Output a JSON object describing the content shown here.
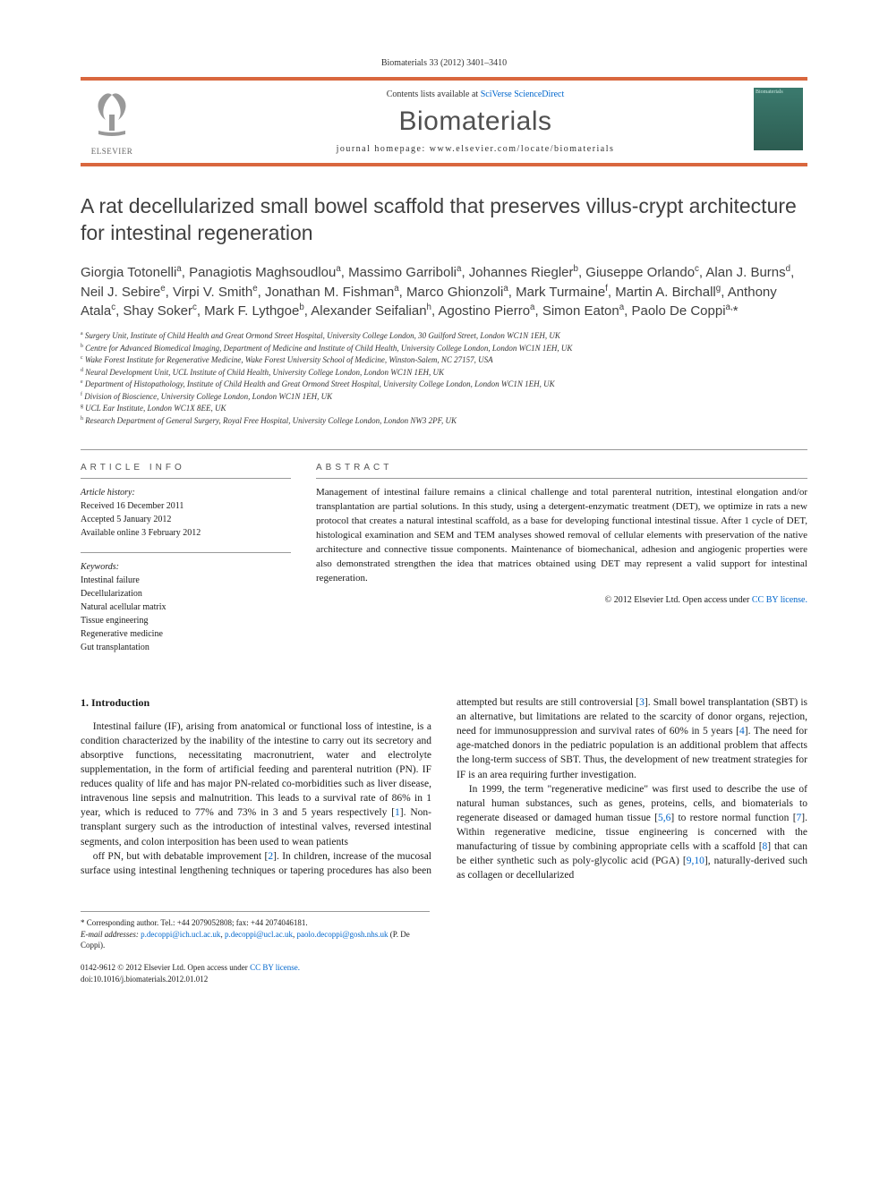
{
  "page_header": "Biomaterials 33 (2012) 3401–3410",
  "header": {
    "publisher": "ELSEVIER",
    "contents_prefix": "Contents lists available at ",
    "contents_link": "SciVerse ScienceDirect",
    "journal": "Biomaterials",
    "homepage_prefix": "journal homepage: ",
    "homepage_url": "www.elsevier.com/locate/biomaterials",
    "accent_color": "#d9673e"
  },
  "title": "A rat decellularized small bowel scaffold that preserves villus-crypt architecture for intestinal regeneration",
  "authors_html": "Giorgia Totonelli<span class='sup'>a</span>, Panagiotis Maghsoudlou<span class='sup'>a</span>, Massimo Garriboli<span class='sup'>a</span>, Johannes Riegler<span class='sup'>b</span>, Giuseppe Orlando<span class='sup'>c</span>, Alan J. Burns<span class='sup'>d</span>, Neil J. Sebire<span class='sup'>e</span>, Virpi V. Smith<span class='sup'>e</span>, Jonathan M. Fishman<span class='sup'>a</span>, Marco Ghionzoli<span class='sup'>a</span>, Mark Turmaine<span class='sup'>f</span>, Martin A. Birchall<span class='sup'>g</span>, Anthony Atala<span class='sup'>c</span>, Shay Soker<span class='sup'>c</span>, Mark F. Lythgoe<span class='sup'>b</span>, Alexander Seifalian<span class='sup'>h</span>, Agostino Pierro<span class='sup'>a</span>, Simon Eaton<span class='sup'>a</span>, Paolo De Coppi<span class='sup'>a,</span>*",
  "affiliations": [
    {
      "key": "a",
      "text": "Surgery Unit, Institute of Child Health and Great Ormond Street Hospital, University College London, 30 Guilford Street, London WC1N 1EH, UK"
    },
    {
      "key": "b",
      "text": "Centre for Advanced Biomedical Imaging, Department of Medicine and Institute of Child Health, University College London, London WC1N 1EH, UK"
    },
    {
      "key": "c",
      "text": "Wake Forest Institute for Regenerative Medicine, Wake Forest University School of Medicine, Winston-Salem, NC 27157, USA"
    },
    {
      "key": "d",
      "text": "Neural Development Unit, UCL Institute of Child Health, University College London, London WC1N 1EH, UK"
    },
    {
      "key": "e",
      "text": "Department of Histopathology, Institute of Child Health and Great Ormond Street Hospital, University College London, London WC1N 1EH, UK"
    },
    {
      "key": "f",
      "text": "Division of Bioscience, University College London, London WC1N 1EH, UK"
    },
    {
      "key": "g",
      "text": "UCL Ear Institute, London WC1X 8EE, UK"
    },
    {
      "key": "h",
      "text": "Research Department of General Surgery, Royal Free Hospital, University College London, London NW3 2PF, UK"
    }
  ],
  "info": {
    "label": "ARTICLE INFO",
    "history_label": "Article history:",
    "history": [
      "Received 16 December 2011",
      "Accepted 5 January 2012",
      "Available online 3 February 2012"
    ],
    "keywords_label": "Keywords:",
    "keywords": [
      "Intestinal failure",
      "Decellularization",
      "Natural acellular matrix",
      "Tissue engineering",
      "Regenerative medicine",
      "Gut transplantation"
    ]
  },
  "abstract": {
    "label": "ABSTRACT",
    "text": "Management of intestinal failure remains a clinical challenge and total parenteral nutrition, intestinal elongation and/or transplantation are partial solutions. In this study, using a detergent-enzymatic treatment (DET), we optimize in rats a new protocol that creates a natural intestinal scaffold, as a base for developing functional intestinal tissue. After 1 cycle of DET, histological examination and SEM and TEM analyses showed removal of cellular elements with preservation of the native architecture and connective tissue components. Maintenance of biomechanical, adhesion and angiogenic properties were also demonstrated strengthen the idea that matrices obtained using DET may represent a valid support for intestinal regeneration.",
    "copyright_prefix": "© 2012 Elsevier Ltd. ",
    "copyright_oa": "Open access under ",
    "copyright_link": "CC BY license."
  },
  "body": {
    "heading": "1. Introduction",
    "p1": "Intestinal failure (IF), arising from anatomical or functional loss of intestine, is a condition characterized by the inability of the intestine to carry out its secretory and absorptive functions, necessitating macronutrient, water and electrolyte supplementation, in the form of artificial feeding and parenteral nutrition (PN). IF reduces quality of life and has major PN-related co-morbidities such as liver disease, intravenous line sepsis and malnutrition. This leads to a survival rate of 86% in 1 year, which is reduced to 77% and 73% in 3 and 5 years respectively [1]. Non-transplant surgery such as the introduction of intestinal valves, reversed intestinal segments, and colon interposition has been used to wean patients",
    "p2": "off PN, but with debatable improvement [2]. In children, increase of the mucosal surface using intestinal lengthening techniques or tapering procedures has also been attempted but results are still controversial [3]. Small bowel transplantation (SBT) is an alternative, but limitations are related to the scarcity of donor organs, rejection, need for immunosuppression and survival rates of 60% in 5 years [4]. The need for age-matched donors in the pediatric population is an additional problem that affects the long-term success of SBT. Thus, the development of new treatment strategies for IF is an area requiring further investigation.",
    "p3": "In 1999, the term \"regenerative medicine\" was first used to describe the use of natural human substances, such as genes, proteins, cells, and biomaterials to regenerate diseased or damaged human tissue [5,6] to restore normal function [7]. Within regenerative medicine, tissue engineering is concerned with the manufacturing of tissue by combining appropriate cells with a scaffold [8] that can be either synthetic such as poly-glycolic acid (PGA) [9,10], naturally-derived such as collagen or decellularized"
  },
  "footnotes": {
    "corr": "* Corresponding author. Tel.: +44 2079052808; fax: +44 2074046181.",
    "email_label": "E-mail addresses: ",
    "emails": [
      "p.decoppi@ich.ucl.ac.uk",
      "p.decoppi@ucl.ac.uk",
      "paolo.decoppi@gosh.nhs.uk"
    ],
    "email_suffix": " (P. De Coppi)."
  },
  "doi": {
    "line1_prefix": "0142-9612 © 2012 Elsevier Ltd. ",
    "line1_oa": "Open access under ",
    "line1_link": "CC BY license.",
    "line2": "doi:10.1016/j.biomaterials.2012.01.012"
  }
}
